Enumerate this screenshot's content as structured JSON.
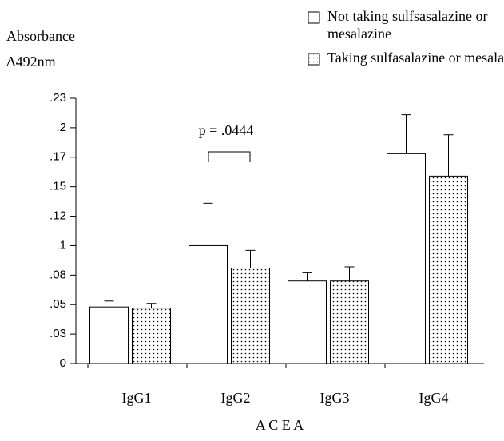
{
  "chart_data": {
    "type": "bar",
    "y_label": [
      "Absorbance",
      "Δ492nm"
    ],
    "x_label": "A C E A",
    "categories": [
      "IgG1",
      "IgG2",
      "IgG3",
      "IgG4"
    ],
    "series": [
      {
        "name": "Not taking sulfsasalazine or mesalazine",
        "color": "#ffffff",
        "values": [
          0.048,
          0.1,
          0.07,
          0.178
        ],
        "errors": [
          0.005,
          0.036,
          0.007,
          0.033
        ]
      },
      {
        "name": "Taking sulfasalazine or mesalazine",
        "color": "#ffffff",
        "pattern": "dots",
        "values": [
          0.047,
          0.081,
          0.07,
          0.159
        ],
        "errors": [
          0.004,
          0.015,
          0.012,
          0.035
        ]
      }
    ],
    "annotation": "p = .0444",
    "ylim": [
      0,
      0.225
    ],
    "yticks": [
      0,
      {
        "value": 0.025,
        "label": ".03"
      },
      {
        "value": 0.05,
        "label": ".05"
      },
      {
        "value": 0.075,
        "label": ".08"
      },
      {
        "value": 0.1,
        "label": ".1"
      },
      {
        "value": 0.125,
        "label": ".12"
      },
      {
        "value": 0.15,
        "label": ".15"
      },
      {
        "value": 0.175,
        "label": ".17"
      },
      {
        "value": 0.2,
        "label": ".2"
      },
      {
        "value": 0.225,
        "label": ".23"
      }
    ]
  }
}
